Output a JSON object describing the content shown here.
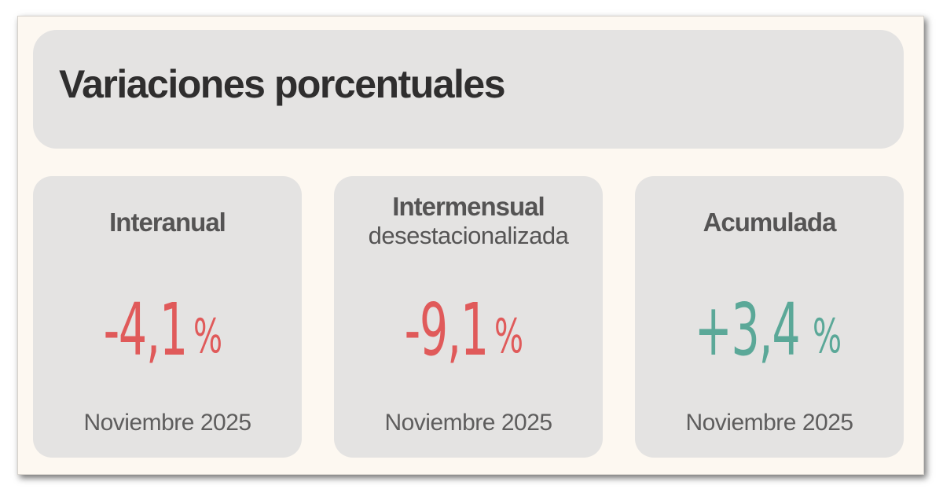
{
  "header": {
    "title": "Variaciones porcentuales"
  },
  "colors": {
    "negative": "#e05a5a",
    "positive": "#5ba898",
    "card_background": "#e4e3e2",
    "page_background": "#fdf8f1"
  },
  "cards": [
    {
      "title": "Interanual",
      "subtitle": "",
      "value": "-4,1",
      "unit": "%",
      "date": "Noviembre 2025"
    },
    {
      "title": "Intermensual",
      "subtitle": "desestacionalizada",
      "value": "-9,1",
      "unit": "%",
      "date": "Noviembre 2025"
    },
    {
      "title": "Acumulada",
      "subtitle": "",
      "value": "+3,4",
      "unit": "%",
      "date": "Noviembre 2025"
    }
  ]
}
